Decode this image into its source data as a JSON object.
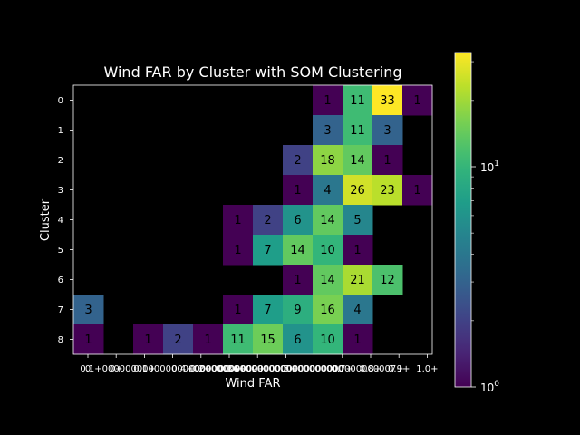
{
  "chart_data": {
    "type": "heatmap",
    "title": "Wind FAR by Cluster with SOM Clustering",
    "xlabel": "Wind FAR",
    "ylabel": "Cluster",
    "x_tick_labels": [
      "0",
      "0+",
      "0.1+",
      "0.1+",
      "0.2+",
      "0.3+",
      "0.4+",
      "0.5+",
      "0.6+",
      "0.7+",
      "0.8+",
      "0.9+",
      "1.0+"
    ],
    "y_tick_labels": [
      "0",
      "1",
      "2",
      "3",
      "4",
      "5",
      "6",
      "7",
      "8"
    ],
    "x_tick_label_text": [
      "0",
      "0+",
      "0.1+",
      "0.1+000000000000000000000000002+",
      "0.2+",
      "0.3+",
      "0.4+00000000000000000000000000",
      "0.5+",
      "0.6+00000000000000000000000007+",
      "0.7+",
      "0.8+",
      "0.9+",
      "1.0+"
    ],
    "colorscale": "viridis",
    "color_scale_type": "log",
    "colorbar": {
      "min": 1,
      "max": 33,
      "ticks": [
        {
          "base": "10",
          "exp": "0",
          "value": 1
        },
        {
          "base": "10",
          "exp": "1",
          "value": 10
        }
      ]
    },
    "values": [
      [
        null,
        null,
        null,
        null,
        null,
        null,
        null,
        null,
        1,
        11,
        33,
        1
      ],
      [
        null,
        null,
        null,
        null,
        null,
        null,
        null,
        null,
        3,
        11,
        3,
        null
      ],
      [
        null,
        null,
        null,
        null,
        null,
        null,
        null,
        2,
        18,
        14,
        1,
        null
      ],
      [
        null,
        null,
        null,
        null,
        null,
        null,
        null,
        1,
        4,
        26,
        23,
        1
      ],
      [
        null,
        null,
        null,
        null,
        null,
        1,
        2,
        6,
        14,
        5,
        null,
        null
      ],
      [
        null,
        null,
        null,
        null,
        null,
        1,
        7,
        14,
        10,
        1,
        null,
        null
      ],
      [
        null,
        null,
        null,
        null,
        null,
        null,
        null,
        1,
        14,
        21,
        12,
        null
      ],
      [
        3,
        null,
        null,
        null,
        null,
        1,
        7,
        9,
        16,
        4,
        null,
        null
      ],
      [
        1,
        null,
        1,
        2,
        1,
        11,
        15,
        6,
        10,
        1,
        null,
        null
      ]
    ]
  }
}
